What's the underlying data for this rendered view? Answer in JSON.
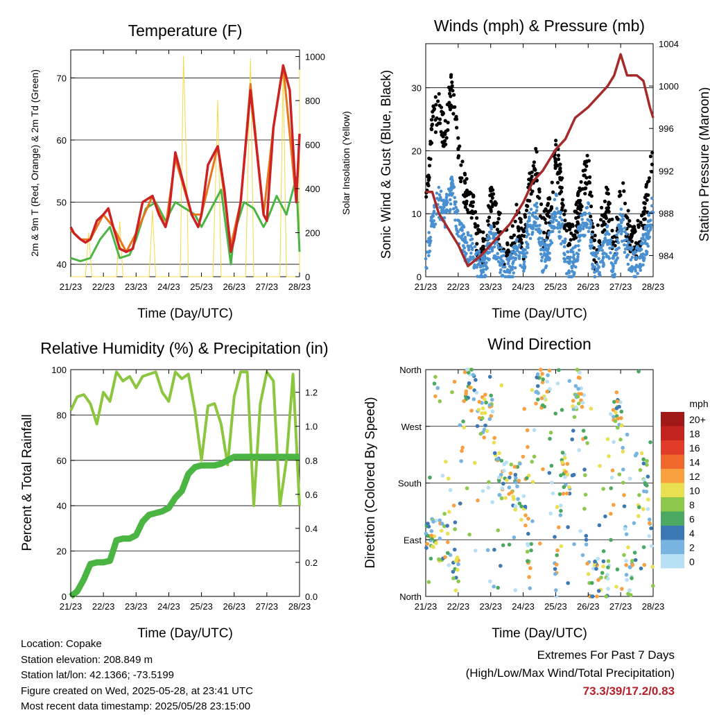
{
  "chart_data": [
    {
      "type": "line",
      "title": "Temperature (F)",
      "xlabel": "Time (Day/UTC)",
      "ylabel": "2m & 9m T (Red, Orange) & 2m Td (Green)",
      "ylabel_right": "Solar Insolation (Yellow)",
      "x_ticks": [
        "21/23",
        "22/23",
        "23/23",
        "24/23",
        "25/23",
        "26/23",
        "27/23",
        "28/23"
      ],
      "ylim": [
        38,
        74.5
      ],
      "y_ticks": [
        40,
        50,
        60,
        70
      ],
      "ylim_right": [
        0,
        1030
      ],
      "y_ticks_right": [
        0,
        200,
        400,
        600,
        800,
        1000
      ],
      "grid": "horizontal",
      "colors": {
        "t2m": "#cc2222",
        "t9m": "#e8741c",
        "td": "#4bb543",
        "solar": "#f5d845"
      },
      "series": [
        {
          "name": "2m T",
          "axis": "left",
          "x": [
            0,
            0.1,
            0.3,
            0.45,
            0.6,
            0.8,
            1.0,
            1.15,
            1.3,
            1.5,
            1.7,
            1.9,
            2.0,
            2.2,
            2.5,
            2.7,
            2.9,
            3.0,
            3.2,
            3.5,
            3.7,
            3.9,
            4.0,
            4.2,
            4.5,
            4.7,
            4.9,
            5.0,
            5.2,
            5.5,
            5.7,
            5.9,
            6.0,
            6.2,
            6.5,
            6.7,
            6.9,
            7.0
          ],
          "y": [
            46,
            45,
            44,
            43.5,
            44,
            47,
            48,
            49,
            46,
            42.5,
            42,
            42.5,
            45,
            50,
            51,
            48,
            46,
            48,
            58,
            52,
            48,
            46,
            48,
            56,
            59,
            52,
            42,
            44,
            50,
            68,
            58,
            48,
            47,
            62,
            72,
            68,
            50,
            61
          ]
        },
        {
          "name": "9m T",
          "axis": "left",
          "x": [
            0,
            0.3,
            0.6,
            1.0,
            1.3,
            1.7,
            2.0,
            2.5,
            2.9,
            3.2,
            3.7,
            4.0,
            4.5,
            4.9,
            5.2,
            5.5,
            5.9,
            6.2,
            6.5,
            6.9,
            7.0
          ],
          "y": [
            45.5,
            44,
            44,
            48,
            46,
            42,
            45,
            51,
            46,
            57,
            48,
            48,
            59,
            43,
            50,
            69,
            48,
            62,
            72,
            50,
            61
          ]
        },
        {
          "name": "2m Td",
          "axis": "left",
          "x": [
            0,
            0.3,
            0.6,
            0.9,
            1.2,
            1.5,
            1.8,
            2.0,
            2.3,
            2.6,
            2.9,
            3.2,
            3.5,
            3.8,
            4.0,
            4.3,
            4.6,
            4.9,
            5.0,
            5.3,
            5.6,
            5.9,
            6.0,
            6.3,
            6.6,
            6.9,
            7.0
          ],
          "y": [
            41,
            40.5,
            41,
            44,
            46,
            41,
            41.5,
            44,
            49,
            50,
            47,
            50,
            49,
            48,
            46,
            49,
            52,
            40,
            45,
            50,
            49,
            46,
            47,
            51,
            48,
            54,
            42
          ]
        },
        {
          "name": "Solar Insolation",
          "axis": "right",
          "x": [
            0,
            0.45,
            0.55,
            0.65,
            1.0,
            1.4,
            1.5,
            1.6,
            2.0,
            2.4,
            2.5,
            2.6,
            3.0,
            3.35,
            3.45,
            3.55,
            3.6,
            4.0,
            4.35,
            4.5,
            4.6,
            5.0,
            5.35,
            5.5,
            5.6,
            6.0,
            6.4,
            6.5,
            6.6,
            7.0,
            7.0
          ],
          "y": [
            0,
            0,
            200,
            0,
            0,
            0,
            250,
            0,
            0,
            0,
            300,
            0,
            0,
            0,
            1000,
            450,
            0,
            0,
            0,
            800,
            0,
            0,
            0,
            990,
            0,
            0,
            0,
            950,
            0,
            0,
            940
          ]
        }
      ]
    },
    {
      "type": "scatter",
      "title": "Winds (mph) & Pressure (mb)",
      "xlabel": "Time (Day/UTC)",
      "ylabel": "Sonic Wind & Gust (Blue, Black)",
      "ylabel_right": "Station Pressure (Maroon)",
      "x_ticks": [
        "21/23",
        "22/23",
        "23/23",
        "24/23",
        "25/23",
        "26/23",
        "27/23",
        "28/23"
      ],
      "ylim": [
        0,
        37
      ],
      "y_ticks": [
        0,
        10,
        20,
        30
      ],
      "ylim_right": [
        982,
        1004
      ],
      "y_ticks_right": [
        984,
        988,
        992,
        996,
        1000,
        1004
      ],
      "grid": "horizontal",
      "colors": {
        "wind": "#4a90d0",
        "gust": "#000000",
        "pressure": "#a52a2a"
      },
      "series": [
        {
          "name": "Gust",
          "axis": "left",
          "x": [
            0,
            0.2,
            0.4,
            0.6,
            0.8,
            1.0,
            1.2,
            1.4,
            1.6,
            1.8,
            2.0,
            2.2,
            2.4,
            2.6,
            2.8,
            3.0,
            3.2,
            3.4,
            3.6,
            3.8,
            4.0,
            4.2,
            4.4,
            4.6,
            4.8,
            5.0,
            5.2,
            5.4,
            5.6,
            5.8,
            6.0,
            6.2,
            6.4,
            6.6,
            6.8,
            7.0
          ],
          "y": [
            12,
            24,
            27,
            22,
            31,
            20,
            14,
            12,
            6,
            4,
            12,
            9,
            5,
            4,
            9,
            5,
            15,
            18,
            7,
            10,
            20,
            13,
            5,
            8,
            14,
            17,
            4,
            8,
            12,
            4,
            15,
            8,
            5,
            7,
            12,
            19
          ]
        },
        {
          "name": "Sonic Wind",
          "axis": "left",
          "x": [
            0,
            0.2,
            0.4,
            0.6,
            0.8,
            1.0,
            1.2,
            1.4,
            1.6,
            1.8,
            2.0,
            2.2,
            2.4,
            2.6,
            2.8,
            3.0,
            3.2,
            3.4,
            3.6,
            3.8,
            4.0,
            4.2,
            4.4,
            4.6,
            4.8,
            5.0,
            5.2,
            5.4,
            5.6,
            5.8,
            6.0,
            6.2,
            6.4,
            6.6,
            6.8,
            7.0
          ],
          "y": [
            3,
            8,
            12,
            10,
            14,
            8,
            5,
            4,
            2,
            1,
            6,
            4,
            2,
            1,
            4,
            2,
            8,
            10,
            3,
            5,
            11,
            7,
            1,
            3,
            8,
            10,
            1,
            3,
            6,
            1,
            9,
            4,
            2,
            3,
            6,
            12
          ]
        },
        {
          "name": "Station Pressure",
          "axis": "right",
          "x": [
            0,
            0.2,
            0.4,
            0.6,
            0.8,
            1.0,
            1.3,
            1.5,
            1.7,
            2.0,
            2.3,
            2.6,
            3.0,
            3.3,
            3.6,
            4.0,
            4.3,
            4.6,
            5.0,
            5.3,
            5.6,
            5.8,
            6.0,
            6.2,
            6.5,
            6.7,
            6.9,
            7.0
          ],
          "y": [
            990,
            990,
            988,
            987,
            986,
            985,
            983,
            983.5,
            984,
            985,
            986,
            987,
            989,
            991,
            992,
            994,
            995,
            997,
            998,
            999,
            1000,
            1001,
            1003,
            1001,
            1001,
            1000.5,
            998,
            997
          ]
        }
      ]
    },
    {
      "type": "line",
      "title": "Relative Humidity (%) & Precipitation (in)",
      "xlabel": "Time (Day/UTC)",
      "ylabel": "Percent & Total Rainfall",
      "x_ticks": [
        "21/23",
        "22/23",
        "23/23",
        "24/23",
        "25/23",
        "26/23",
        "27/23",
        "28/23"
      ],
      "ylim": [
        0,
        100
      ],
      "y_ticks": [
        0,
        20,
        40,
        60,
        80,
        100
      ],
      "ylim_right": [
        0,
        1.333
      ],
      "y_ticks_right": [
        0.0,
        0.2,
        0.4,
        0.6,
        0.8,
        1.0,
        1.2
      ],
      "grid": "horizontal",
      "colors": {
        "rh": "#8cc63f",
        "precip": "#4bb543"
      },
      "series": [
        {
          "name": "Relative Humidity",
          "axis": "left",
          "x": [
            0,
            0.2,
            0.4,
            0.6,
            0.8,
            1.0,
            1.2,
            1.4,
            1.6,
            1.8,
            2.0,
            2.2,
            2.4,
            2.6,
            2.8,
            3.0,
            3.2,
            3.4,
            3.6,
            3.8,
            4.0,
            4.2,
            4.4,
            4.6,
            4.8,
            5.0,
            5.2,
            5.4,
            5.6,
            5.8,
            6.0,
            6.2,
            6.4,
            6.6,
            6.8,
            7.0
          ],
          "y": [
            82,
            88,
            89,
            85,
            76,
            90,
            86,
            99,
            95,
            97,
            92,
            97,
            98,
            99,
            90,
            86,
            99,
            96,
            98,
            82,
            60,
            84,
            85,
            76,
            58,
            88,
            99,
            99,
            40,
            85,
            99,
            95,
            40,
            60,
            98,
            40
          ]
        },
        {
          "name": "Total Precipitation",
          "axis": "right",
          "x": [
            0,
            0.2,
            0.4,
            0.6,
            0.8,
            1.0,
            1.2,
            1.4,
            1.6,
            1.8,
            2.0,
            2.2,
            2.4,
            2.6,
            2.8,
            3.0,
            3.2,
            3.4,
            3.6,
            3.8,
            4.0,
            4.2,
            4.4,
            4.6,
            4.8,
            5.0,
            6.0,
            7.0
          ],
          "y": [
            0.0,
            0.03,
            0.1,
            0.19,
            0.2,
            0.2,
            0.21,
            0.33,
            0.34,
            0.34,
            0.36,
            0.44,
            0.48,
            0.49,
            0.5,
            0.52,
            0.58,
            0.62,
            0.72,
            0.76,
            0.77,
            0.77,
            0.77,
            0.78,
            0.8,
            0.82,
            0.82,
            0.82
          ]
        }
      ]
    },
    {
      "type": "scatter",
      "title": "Wind Direction",
      "xlabel": "Time (Day/UTC)",
      "ylabel": "Direction (Colored By Speed)",
      "x_ticks": [
        "21/23",
        "22/23",
        "23/23",
        "24/23",
        "25/23",
        "26/23",
        "27/23",
        "28/23"
      ],
      "ylim": [
        0,
        360
      ],
      "y_ticks": [
        0,
        90,
        180,
        270,
        360
      ],
      "y_tick_labels": [
        "North",
        "East",
        "South",
        "West",
        "North"
      ],
      "grid": "horizontal",
      "legend": {
        "title": "mph",
        "position": "right",
        "labels": [
          "20+",
          "18",
          "16",
          "14",
          "12",
          "10",
          "8",
          "6",
          "4",
          "2",
          "0"
        ],
        "colors": [
          "#a01818",
          "#c42420",
          "#e03c28",
          "#f0682c",
          "#f8a040",
          "#e8e050",
          "#8cc84c",
          "#4aa860",
          "#3c78b4",
          "#78b4e0",
          "#b8e0f4"
        ]
      },
      "series": [
        {
          "name": "Direction",
          "x": [
            0.05,
            0.15,
            0.3,
            0.45,
            0.6,
            0.8,
            1.0,
            1.2,
            1.4,
            1.6,
            1.8,
            2.0,
            2.2,
            2.4,
            2.6,
            2.8,
            3.0,
            3.2,
            3.4,
            3.6,
            3.8,
            4.0,
            4.2,
            4.4,
            4.6,
            4.8,
            5.0,
            5.2,
            5.4,
            5.6,
            5.8,
            6.0,
            6.2,
            6.4,
            6.6,
            6.8,
            7.0
          ],
          "y": [
            100,
            95,
            92,
            90,
            88,
            60,
            30,
            340,
            350,
            300,
            280,
            320,
            200,
            185,
            180,
            170,
            190,
            30,
            320,
            330,
            340,
            10,
            200,
            180,
            330,
            340,
            20,
            30,
            25,
            20,
            300,
            280,
            40,
            30,
            200,
            190,
            30
          ]
        }
      ]
    }
  ],
  "info": {
    "location": "Location: Copake",
    "elevation": "Station elevation: 208.849 m",
    "latlon": "Station lat/lon: 42.1366; -73.5199",
    "created": "Figure created on Wed, 2025-05-28, at 23:41 UTC",
    "recent": "Most recent data timestamp: 2025/05/28 23:15:00"
  },
  "extremes": {
    "line1": "Extremes For Past 7 Days",
    "line2": "(High/Low/Max Wind/Total Precipitation)",
    "values": "73.3/39/17.2/0.83"
  }
}
